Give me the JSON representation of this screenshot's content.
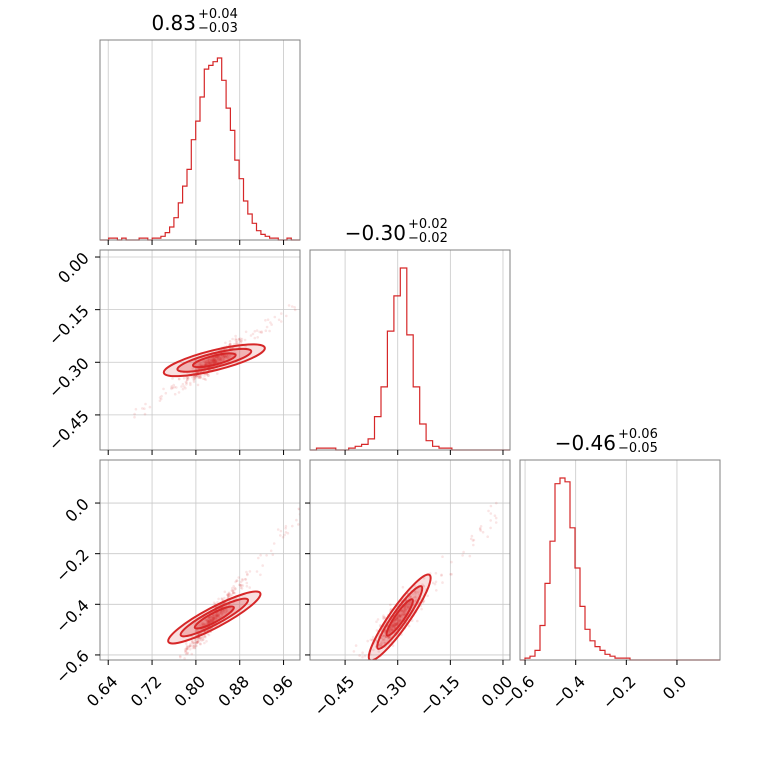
{
  "chart_data": {
    "type": "corner",
    "color": "#d62728",
    "parameters": [
      {
        "title_value": "0.83",
        "title_plus": "+0.04",
        "title_minus": "−0.03",
        "median": 0.83,
        "range": [
          0.625,
          0.99
        ],
        "ticks": [
          0.64,
          0.72,
          0.8,
          0.88,
          0.96
        ],
        "tick_labels": [
          "0.64",
          "0.72",
          "0.80",
          "0.88",
          "0.96"
        ],
        "hist_edges": [
          0.625,
          0.9825
        ],
        "hist_counts": [
          0,
          0,
          1,
          1,
          0,
          1,
          0,
          0,
          0,
          1,
          1,
          0,
          1,
          1,
          2,
          4,
          7,
          12,
          20,
          29,
          38,
          54,
          64,
          77,
          92,
          94,
          96,
          98,
          86,
          71,
          59,
          43,
          33,
          21,
          14,
          9,
          5,
          3,
          2,
          1,
          1,
          0,
          0,
          1,
          0,
          0
        ]
      },
      {
        "title_value": "−0.30",
        "title_plus": "+0.02",
        "title_minus": "−0.02",
        "median": -0.3,
        "range": [
          -0.55,
          0.02
        ],
        "ticks": [
          0.0,
          -0.15,
          -0.3,
          -0.45
        ],
        "tick_labels": [
          "0.00",
          "−0.15",
          "−0.30",
          "−0.45"
        ],
        "hist_counts": [
          0,
          1,
          1,
          1,
          0,
          0,
          1,
          2,
          3,
          6,
          18,
          34,
          64,
          83,
          98,
          62,
          34,
          14,
          5,
          2,
          1,
          1,
          0,
          0,
          0,
          0,
          0,
          0,
          0,
          0,
          0
        ]
      },
      {
        "title_value": "−0.46",
        "title_plus": "+0.06",
        "title_minus": "−0.05",
        "median": -0.46,
        "range": [
          -0.62,
          0.17
        ],
        "ticks": [
          -0.6,
          -0.4,
          -0.2,
          0.0
        ],
        "tick_labels": [
          "−0.6",
          "−0.4",
          "−0.2",
          "0.0"
        ],
        "hist_counts": [
          0,
          1,
          2,
          5,
          18,
          40,
          62,
          92,
          95,
          93,
          69,
          48,
          28,
          16,
          10,
          7,
          5,
          3,
          2,
          1,
          1,
          1,
          0,
          0,
          0,
          0,
          0,
          0,
          0,
          0,
          0,
          0,
          0,
          0,
          0,
          0,
          0,
          0,
          0,
          0
        ]
      }
    ],
    "correlations": [
      {
        "pair": [
          0,
          1
        ],
        "slope": 1.2,
        "spread": 0.012
      },
      {
        "pair": [
          0,
          2
        ],
        "slope": 2.2,
        "spread": 0.02
      },
      {
        "pair": [
          1,
          2
        ],
        "slope": 1.9,
        "spread": 0.03
      }
    ]
  }
}
